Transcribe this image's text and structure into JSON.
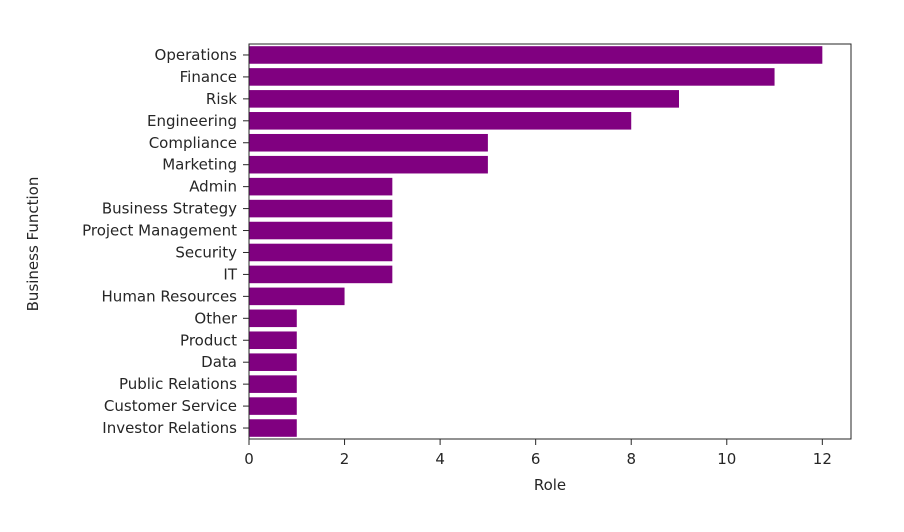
{
  "chart_data": {
    "type": "bar",
    "orientation": "horizontal",
    "categories": [
      "Operations",
      "Finance",
      "Risk",
      "Engineering",
      "Compliance",
      "Marketing",
      "Admin",
      "Business Strategy",
      "Project Management",
      "Security",
      "IT",
      "Human Resources",
      "Other",
      "Product",
      "Data",
      "Public Relations",
      "Customer Service",
      "Investor Relations"
    ],
    "values": [
      12,
      11,
      9,
      8,
      5,
      5,
      3,
      3,
      3,
      3,
      3,
      2,
      1,
      1,
      1,
      1,
      1,
      1
    ],
    "xlabel": "Role",
    "ylabel": "Business Function",
    "xlim": [
      0,
      12.6
    ],
    "xticks": [
      0,
      2,
      4,
      6,
      8,
      10,
      12
    ],
    "bar_color": "#800080",
    "grid": false,
    "legend": "none"
  }
}
